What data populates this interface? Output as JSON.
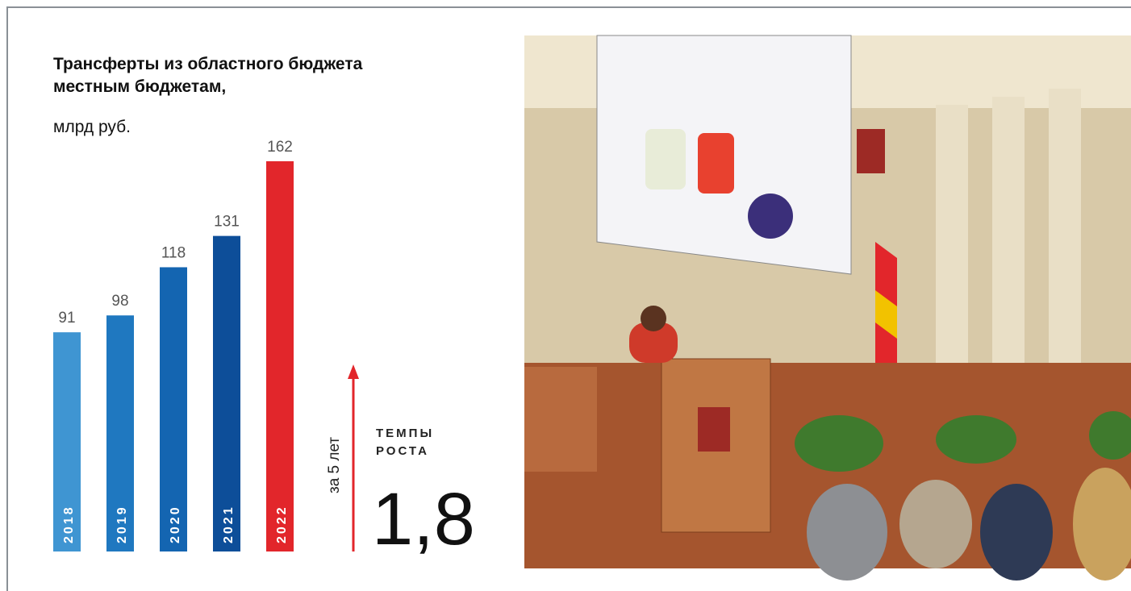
{
  "chart_data": {
    "type": "bar",
    "title": "Трансферты из областного бюджета местным бюджетам,",
    "subtitle": "млрд руб.",
    "categories": [
      "2018",
      "2019",
      "2020",
      "2021",
      "2022"
    ],
    "values": [
      91,
      98,
      118,
      131,
      162
    ],
    "colors": [
      "#3f95d2",
      "#1f78c0",
      "#1465b1",
      "#0d4e99",
      "#e2262b"
    ],
    "growth": {
      "period": "за 5 лет",
      "label_lines": [
        "ТЕМПЫ",
        "РОСТА"
      ],
      "value": "1,8",
      "color": "#e2262b"
    }
  }
}
